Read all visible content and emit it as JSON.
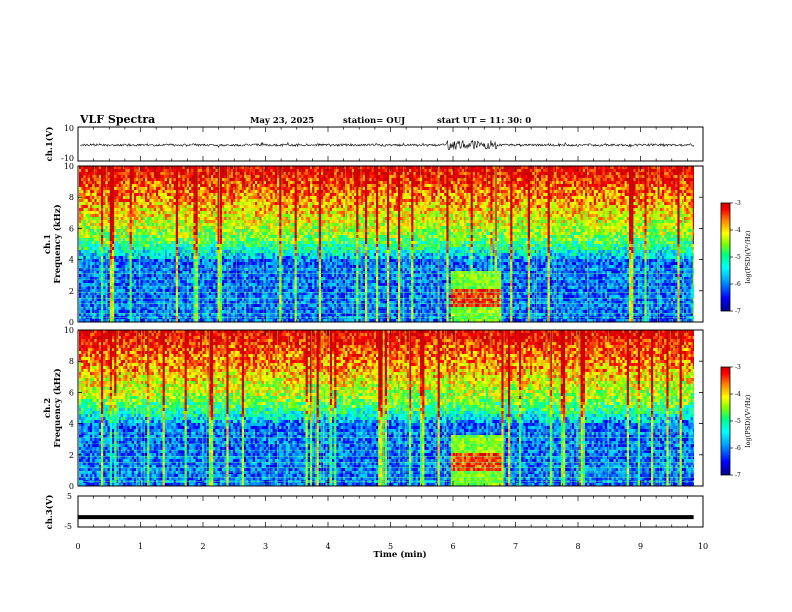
{
  "header": {
    "title": "VLF Spectra",
    "date": "May 23, 2025",
    "station": "station= OUJ",
    "start": "start  UT =   11: 30: 0"
  },
  "colors": {
    "colormap": [
      "#00008b",
      "#0000ff",
      "#00a0ff",
      "#00ffff",
      "#00ff80",
      "#7fff00",
      "#ffff00",
      "#ff8000",
      "#ff0000",
      "#cc0000"
    ],
    "waveform": "#000000"
  },
  "chart_data": [
    {
      "type": "line",
      "name": "ch1-waveform",
      "ylabel": "ch.1(V)",
      "ylim": [
        -10,
        10
      ],
      "yticks": [
        "10",
        "-10"
      ],
      "baseline": 0,
      "burst_x": [
        5.9,
        6.7
      ],
      "notes_series": "noise trace; burst of larger amplitude near 6.0–6.7 min"
    },
    {
      "type": "heatmap",
      "name": "ch1-spectrogram",
      "ylabel": "ch.1\nFrequency (kHz)",
      "ylim": [
        0,
        10
      ],
      "yticks": [
        "0",
        "2",
        "4",
        "6",
        "8",
        "10"
      ],
      "zlim": [
        -7,
        -3
      ],
      "event_x": [
        5.95,
        6.75
      ],
      "event_band_khz": [
        1.0,
        2.2
      ],
      "colorbar": {
        "ticks": [
          "-3",
          "-4",
          "-5",
          "-6",
          "-7"
        ],
        "label": "log(PSD)(V²/Hz)"
      }
    },
    {
      "type": "heatmap",
      "name": "ch2-spectrogram",
      "ylabel": "ch.2\nFrequency (kHz)",
      "ylim": [
        0,
        10
      ],
      "yticks": [
        "0",
        "2",
        "4",
        "6",
        "8",
        "10"
      ],
      "zlim": [
        -7,
        -3
      ],
      "event_x": [
        5.95,
        6.75
      ],
      "event_band_khz": [
        1.0,
        2.2
      ],
      "colorbar": {
        "ticks": [
          "-3",
          "-4",
          "-5",
          "-6",
          "-7"
        ],
        "label": "log(PSD)(V²/Hz)"
      }
    },
    {
      "type": "line",
      "name": "ch3-trace",
      "ylabel": "ch.3(V)",
      "ylim": [
        -5,
        5
      ],
      "yticks": [
        "5",
        "0",
        "-5"
      ],
      "x": [
        0,
        9.85
      ],
      "y": [
        -1.8,
        -1.8
      ]
    }
  ],
  "xaxis": {
    "label": "Time (min)",
    "xlim": [
      0,
      10
    ],
    "ticks": [
      "0",
      "1",
      "2",
      "3",
      "4",
      "5",
      "6",
      "7",
      "8",
      "9",
      "10"
    ]
  }
}
